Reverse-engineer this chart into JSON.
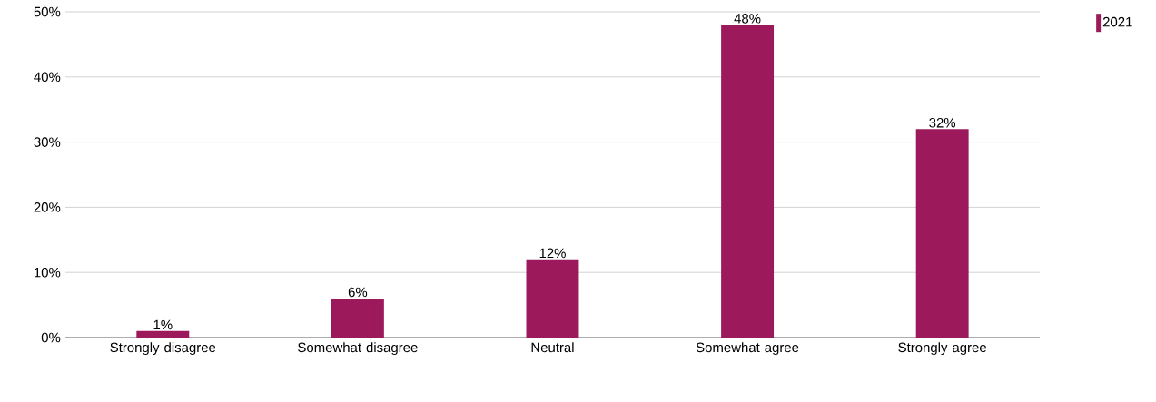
{
  "chart_data": {
    "type": "bar",
    "categories": [
      "Strongly disagree",
      "Somewhat disagree",
      "Neutral",
      "Somewhat agree",
      "Strongly agree"
    ],
    "series": [
      {
        "name": "2021",
        "color": "#9c1a5b",
        "values": [
          1,
          6,
          12,
          48,
          32
        ],
        "value_labels": [
          "1%",
          "6%",
          "12%",
          "48%",
          "32%"
        ]
      }
    ],
    "ylim": [
      0,
      50
    ],
    "yticks": [
      {
        "value": 0,
        "label": "0%"
      },
      {
        "value": 10,
        "label": "10%"
      },
      {
        "value": 20,
        "label": "20%"
      },
      {
        "value": 30,
        "label": "30%"
      },
      {
        "value": 40,
        "label": "40%"
      },
      {
        "value": 50,
        "label": "50%"
      }
    ],
    "grid": "y",
    "legend": "top right"
  }
}
